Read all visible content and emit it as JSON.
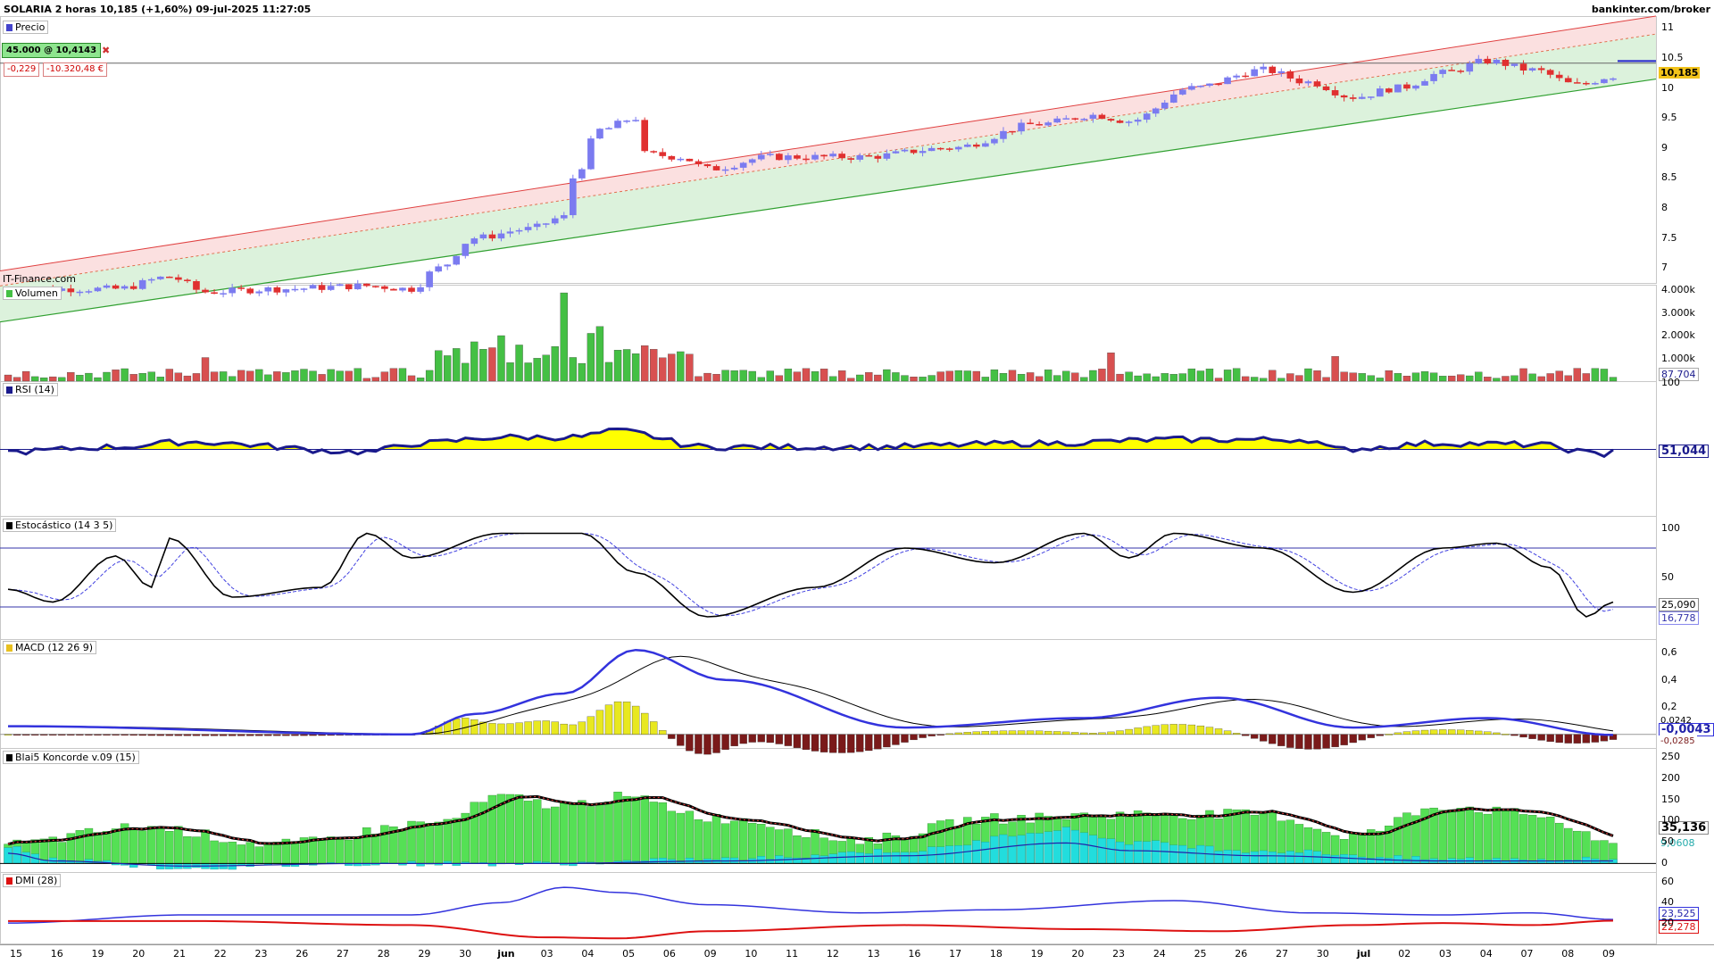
{
  "header": {
    "title": "SOLARIA 2 horas 10,185 (+1,60%) 09-jul-2025 11:27:05",
    "site": "bankinter.com/broker"
  },
  "panels": {
    "price": "Precio",
    "volume": "Volumen",
    "rsi": "RSI (14)",
    "stoch": "Estocástico (14 3 5)",
    "macd": "MACD (12 26 9)",
    "koncorde": "Blai5 Koncorde v.09 (15)",
    "dmi": "DMI (28)"
  },
  "position": {
    "order": "45.000 @ 10,4143",
    "change": "-0,229",
    "pnl": "-10.320,48 €"
  },
  "source": "IT-Finance.com",
  "colors": {
    "up": "#7b7bf0",
    "down": "#e03030",
    "vol_up": "#44c044",
    "vol_down": "#d85050",
    "rsi_line": "#1a1a8c",
    "rsi_fill": "#ffff00",
    "k_line": "#000000",
    "d_line": "#4040e0",
    "macd_line": "#3333dd",
    "signal_line": "#000000",
    "hist_pos": "#e8e820",
    "hist_neg": "#7a1a1a",
    "kon_green": "#55e055",
    "kon_cyan": "#22dddd",
    "kon_blue": "#2222aa",
    "dmi_plus": "#3333dd",
    "dmi_minus": "#dd1111",
    "channel_upper": "#e04040",
    "channel_lower": "#30a030"
  },
  "right_values": {
    "price": "10,185",
    "volume": "87.704",
    "rsi": "51,044",
    "stoch_k": "25,090",
    "stoch_d": "16,778",
    "macd": "-0,0043",
    "macd_signal": "0,0242",
    "macd_hist": "-0,0285",
    "koncorde": "35,136",
    "koncorde_blue": "9,0608",
    "dmi_plus": "23,525",
    "dmi_minus": "22,278"
  },
  "axes": {
    "price_ticks": [
      "11",
      "10.5",
      "10",
      "9.5",
      "9",
      "8.5",
      "8",
      "7.5",
      "7"
    ],
    "volume_ticks": [
      "4.000k",
      "3.000k",
      "2.000k",
      "1.000k"
    ],
    "rsi_ticks": [
      "100"
    ],
    "stoch_ticks": [
      "100",
      "50"
    ],
    "macd_ticks": [
      "0,6",
      "0,4",
      "0,2"
    ],
    "koncorde_ticks": [
      "250",
      "200",
      "150",
      "100",
      "50",
      "0"
    ],
    "dmi_ticks": [
      "60",
      "40",
      "20"
    ],
    "x_labels": [
      "15",
      "16",
      "19",
      "20",
      "21",
      "22",
      "23",
      "26",
      "27",
      "28",
      "29",
      "30",
      "jun",
      "03",
      "04",
      "05",
      "06",
      "09",
      "10",
      "11",
      "12",
      "13",
      "16",
      "17",
      "18",
      "19",
      "20",
      "23",
      "24",
      "25",
      "26",
      "27",
      "30",
      "jul",
      "02",
      "03",
      "04",
      "07",
      "08",
      "09"
    ]
  },
  "chart_data": {
    "type": "line",
    "title": "SOLARIA 2 horas",
    "x_count": 180,
    "price_ylim": [
      6.75,
      11.2
    ],
    "ohlc_anchors": [
      [
        0,
        6.65
      ],
      [
        12,
        6.65
      ],
      [
        18,
        6.85
      ],
      [
        22,
        6.6
      ],
      [
        30,
        6.65
      ],
      [
        40,
        6.7
      ],
      [
        45,
        6.65
      ],
      [
        48,
        7.0
      ],
      [
        52,
        7.5
      ],
      [
        58,
        7.65
      ],
      [
        62,
        7.85
      ],
      [
        63,
        8.5
      ],
      [
        66,
        9.3
      ],
      [
        70,
        9.5
      ],
      [
        71,
        8.9
      ],
      [
        75,
        8.85
      ],
      [
        78,
        8.65
      ],
      [
        85,
        8.85
      ],
      [
        95,
        8.85
      ],
      [
        105,
        9.0
      ],
      [
        115,
        9.4
      ],
      [
        121,
        9.55
      ],
      [
        125,
        9.45
      ],
      [
        132,
        10.0
      ],
      [
        140,
        10.3
      ],
      [
        145,
        10.1
      ],
      [
        150,
        9.85
      ],
      [
        155,
        10.0
      ],
      [
        160,
        10.25
      ],
      [
        165,
        10.45
      ],
      [
        170,
        10.3
      ],
      [
        175,
        10.05
      ],
      [
        179,
        10.2
      ]
    ],
    "channel": {
      "upper": [
        6.95,
        11.2
      ],
      "middle": [
        6.7,
        10.9
      ],
      "lower": [
        6.1,
        10.15
      ]
    },
    "horizontal_line": 10.4143,
    "volume_peak_index": 62,
    "volume_max": 4000,
    "rsi_anchors": [
      [
        0,
        48
      ],
      [
        12,
        52
      ],
      [
        20,
        56
      ],
      [
        40,
        48
      ],
      [
        46,
        55
      ],
      [
        55,
        60
      ],
      [
        63,
        60
      ],
      [
        68,
        65
      ],
      [
        78,
        52
      ],
      [
        95,
        52
      ],
      [
        115,
        55
      ],
      [
        130,
        58
      ],
      [
        145,
        58
      ],
      [
        148,
        50
      ],
      [
        160,
        55
      ],
      [
        170,
        54
      ],
      [
        178,
        46
      ],
      [
        179,
        51
      ]
    ],
    "stoch_k_anchors": [
      [
        0,
        38
      ],
      [
        5,
        25
      ],
      [
        12,
        72
      ],
      [
        16,
        40
      ],
      [
        18,
        90
      ],
      [
        25,
        30
      ],
      [
        35,
        40
      ],
      [
        40,
        95
      ],
      [
        45,
        70
      ],
      [
        55,
        95
      ],
      [
        64,
        95
      ],
      [
        70,
        55
      ],
      [
        78,
        10
      ],
      [
        90,
        40
      ],
      [
        100,
        80
      ],
      [
        110,
        65
      ],
      [
        120,
        95
      ],
      [
        125,
        70
      ],
      [
        130,
        95
      ],
      [
        140,
        80
      ],
      [
        150,
        35
      ],
      [
        160,
        80
      ],
      [
        166,
        85
      ],
      [
        172,
        60
      ],
      [
        176,
        10
      ],
      [
        179,
        25
      ]
    ],
    "macd_anchors": [
      [
        0,
        0.06
      ],
      [
        45,
        0.0
      ],
      [
        52,
        0.15
      ],
      [
        62,
        0.3
      ],
      [
        70,
        0.62
      ],
      [
        80,
        0.4
      ],
      [
        100,
        0.05
      ],
      [
        120,
        0.12
      ],
      [
        135,
        0.27
      ],
      [
        150,
        0.05
      ],
      [
        165,
        0.12
      ],
      [
        179,
        -0.0043
      ]
    ],
    "macd_ylim": [
      -0.1,
      0.7
    ],
    "koncorde_ylim": [
      -20,
      270
    ],
    "koncorde_green_anchors": [
      [
        0,
        40
      ],
      [
        15,
        80
      ],
      [
        30,
        40
      ],
      [
        48,
        90
      ],
      [
        55,
        150
      ],
      [
        62,
        130
      ],
      [
        68,
        150
      ],
      [
        80,
        100
      ],
      [
        95,
        50
      ],
      [
        110,
        100
      ],
      [
        125,
        110
      ],
      [
        140,
        110
      ],
      [
        150,
        60
      ],
      [
        160,
        130
      ],
      [
        170,
        110
      ],
      [
        179,
        40
      ]
    ],
    "koncorde_cyan_anchors": [
      [
        0,
        40
      ],
      [
        5,
        10
      ],
      [
        20,
        -10
      ],
      [
        40,
        0
      ],
      [
        60,
        0
      ],
      [
        80,
        10
      ],
      [
        100,
        30
      ],
      [
        118,
        80
      ],
      [
        125,
        50
      ],
      [
        140,
        30
      ],
      [
        160,
        10
      ],
      [
        179,
        10
      ]
    ],
    "dmi_ylim": [
      0,
      70
    ],
    "dmi_plus_anchors": [
      [
        0,
        20
      ],
      [
        20,
        28
      ],
      [
        45,
        28
      ],
      [
        55,
        40
      ],
      [
        62,
        55
      ],
      [
        68,
        50
      ],
      [
        78,
        38
      ],
      [
        95,
        30
      ],
      [
        110,
        33
      ],
      [
        130,
        42
      ],
      [
        145,
        30
      ],
      [
        160,
        28
      ],
      [
        170,
        30
      ],
      [
        179,
        23.5
      ]
    ],
    "dmi_minus_anchors": [
      [
        0,
        22
      ],
      [
        20,
        22
      ],
      [
        45,
        18
      ],
      [
        60,
        6
      ],
      [
        68,
        5
      ],
      [
        78,
        12
      ],
      [
        100,
        18
      ],
      [
        120,
        14
      ],
      [
        135,
        12
      ],
      [
        150,
        18
      ],
      [
        160,
        20
      ],
      [
        170,
        18
      ],
      [
        179,
        22.3
      ]
    ]
  }
}
